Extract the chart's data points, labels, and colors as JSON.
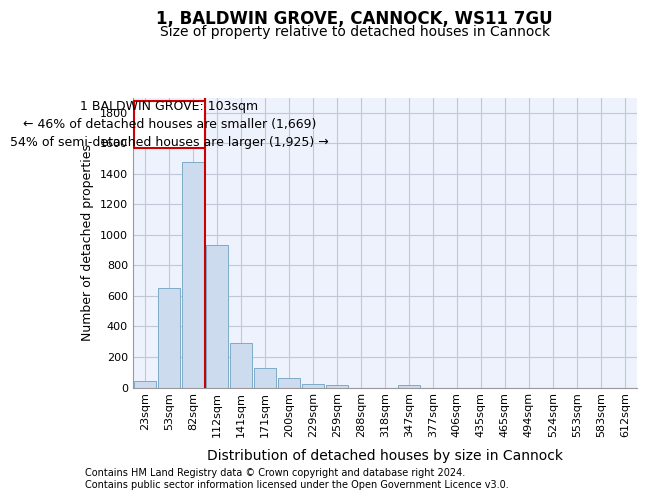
{
  "title": "1, BALDWIN GROVE, CANNOCK, WS11 7GU",
  "subtitle": "Size of property relative to detached houses in Cannock",
  "xlabel": "Distribution of detached houses by size in Cannock",
  "ylabel": "Number of detached properties",
  "categories": [
    "23sqm",
    "53sqm",
    "82sqm",
    "112sqm",
    "141sqm",
    "171sqm",
    "200sqm",
    "229sqm",
    "259sqm",
    "288sqm",
    "318sqm",
    "347sqm",
    "377sqm",
    "406sqm",
    "435sqm",
    "465sqm",
    "494sqm",
    "524sqm",
    "553sqm",
    "583sqm",
    "612sqm"
  ],
  "values": [
    40,
    650,
    1475,
    935,
    290,
    130,
    65,
    25,
    15,
    0,
    0,
    15,
    0,
    0,
    0,
    0,
    0,
    0,
    0,
    0,
    0
  ],
  "bar_color": "#ccdcee",
  "bar_edge_color": "#7eaac8",
  "vline_color": "#cc0000",
  "vline_idx": 3,
  "annotation_text_line1": "1 BALDWIN GROVE: 103sqm",
  "annotation_text_line2": "← 46% of detached houses are smaller (1,669)",
  "annotation_text_line3": "54% of semi-detached houses are larger (1,925) →",
  "annotation_box_color": "#cc0000",
  "ylim": [
    0,
    1900
  ],
  "yticks": [
    0,
    200,
    400,
    600,
    800,
    1000,
    1200,
    1400,
    1600,
    1800
  ],
  "background_color": "#eef2fc",
  "grid_color": "#c0c8d8",
  "footer_line1": "Contains HM Land Registry data © Crown copyright and database right 2024.",
  "footer_line2": "Contains public sector information licensed under the Open Government Licence v3.0.",
  "title_fontsize": 12,
  "subtitle_fontsize": 10,
  "xlabel_fontsize": 10,
  "ylabel_fontsize": 9,
  "tick_fontsize": 8,
  "ann_fontsize": 9,
  "footer_fontsize": 7
}
